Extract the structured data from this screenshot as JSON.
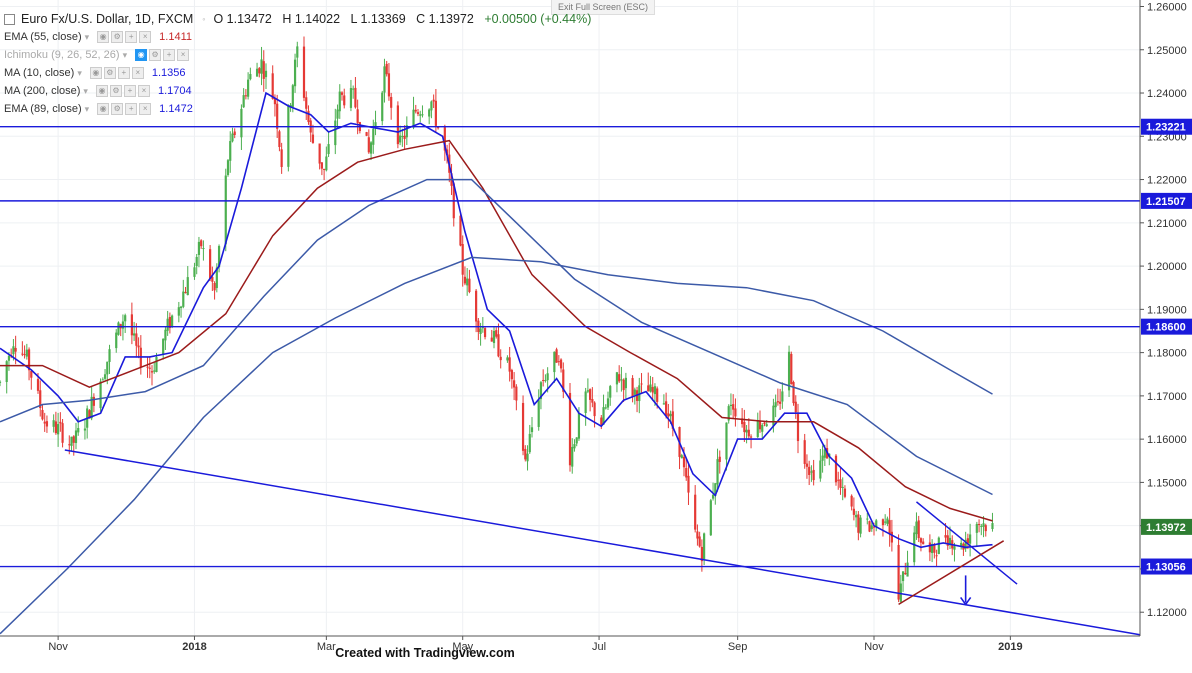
{
  "header": {
    "symbol": "Euro Fx/U.S. Dollar, 1D, FXCM",
    "open": "O 1.13472",
    "high": "H 1.14022",
    "low": "L 1.13369",
    "close": "C 1.13972",
    "change": "+0.00500 (+0.44%)",
    "exit_fullscreen": "Exit Full Screen (ESC)"
  },
  "indicators": [
    {
      "label": "EMA (55, close)",
      "value": "1.1411",
      "color": "#c62828",
      "dim": false
    },
    {
      "label": "Ichimoku (9, 26, 52, 26)",
      "value": "",
      "color": "#aaaaaa",
      "dim": true
    },
    {
      "label": "MA (10, close)",
      "value": "1.1356",
      "color": "#1a1adb",
      "dim": false
    },
    {
      "label": "MA (200, close)",
      "value": "1.1704",
      "color": "#1a1adb",
      "dim": false
    },
    {
      "label": "EMA (89, close)",
      "value": "1.1472",
      "color": "#1a1adb",
      "dim": false
    }
  ],
  "footer": "Created with Tradingview.com",
  "colors": {
    "up_candle": "#4caf50",
    "down_candle": "#e53935",
    "ma10": "#1a1adb",
    "ema55": "#9b1b1b",
    "ema89": "#3c5aa8",
    "ma200": "#3c5aa8",
    "hline": "#1a1adb",
    "price_badge_up": "#2e7d32",
    "axis_text": "#333333"
  },
  "chart_data": {
    "type": "candlestick",
    "title": "Euro Fx/U.S. Dollar, 1D, FXCM",
    "ylim": [
      1.1145,
      1.2615
    ],
    "y_ticks": [
      "1.12000",
      "1.13000",
      "1.14000",
      "1.15000",
      "1.16000",
      "1.17000",
      "1.18000",
      "1.19000",
      "1.20000",
      "1.21000",
      "1.22000",
      "1.23000",
      "1.24000",
      "1.25000",
      "1.26000"
    ],
    "x_range": [
      "2017-10-06",
      "2019-02-28"
    ],
    "x_ticks": [
      {
        "label": "Nov",
        "date": "2017-11-01"
      },
      {
        "label": "2018",
        "date": "2018-01-01"
      },
      {
        "label": "Mar",
        "date": "2018-03-01"
      },
      {
        "label": "May",
        "date": "2018-05-01"
      },
      {
        "label": "Jul",
        "date": "2018-07-01"
      },
      {
        "label": "Sep",
        "date": "2018-09-01"
      },
      {
        "label": "Nov",
        "date": "2018-11-01"
      },
      {
        "label": "2019",
        "date": "2019-01-01"
      }
    ],
    "price_badges": [
      {
        "value": "1.23221",
        "color": "#1a1adb"
      },
      {
        "value": "1.21507",
        "color": "#1a1adb"
      },
      {
        "value": "1.18600",
        "color": "#1a1adb"
      },
      {
        "value": "1.13972",
        "color": "#2e7d32"
      },
      {
        "value": "1.13056",
        "color": "#1a1adb"
      }
    ],
    "horizontal_lines": [
      1.23221,
      1.21507,
      1.186,
      1.13056
    ],
    "trendlines": [
      {
        "name": "long-support",
        "color": "#1a1adb",
        "points": [
          [
            "2017-11-04",
            1.1575
          ],
          [
            "2019-02-28",
            1.1148
          ]
        ]
      },
      {
        "name": "short-resistance",
        "color": "#1a1adb",
        "points": [
          [
            "2018-11-20",
            1.1455
          ],
          [
            "2019-01-04",
            1.1265
          ]
        ]
      },
      {
        "name": "rising-support",
        "color": "#9b1b1b",
        "points": [
          [
            "2018-11-12",
            1.1218
          ],
          [
            "2018-12-29",
            1.1365
          ]
        ]
      }
    ],
    "arrow": {
      "date": "2018-12-12",
      "from": 1.1285,
      "to": 1.1218,
      "color": "#1a1adb"
    },
    "ohlc_close_path": [
      [
        "2017-10-06",
        1.173
      ],
      [
        "2017-10-12",
        1.183
      ],
      [
        "2017-10-18",
        1.1785
      ],
      [
        "2017-10-26",
        1.164
      ],
      [
        "2017-11-02",
        1.162
      ],
      [
        "2017-11-07",
        1.1585
      ],
      [
        "2017-11-13",
        1.164
      ],
      [
        "2017-11-20",
        1.174
      ],
      [
        "2017-11-27",
        1.184
      ],
      [
        "2017-12-01",
        1.189
      ],
      [
        "2017-12-07",
        1.179
      ],
      [
        "2017-12-13",
        1.176
      ],
      [
        "2017-12-20",
        1.186
      ],
      [
        "2017-12-28",
        1.195
      ],
      [
        "2018-01-04",
        1.205
      ],
      [
        "2018-01-10",
        1.194
      ],
      [
        "2018-01-16",
        1.225
      ],
      [
        "2018-01-25",
        1.243
      ],
      [
        "2018-01-31",
        1.247
      ],
      [
        "2018-02-06",
        1.238
      ],
      [
        "2018-02-09",
        1.224
      ],
      [
        "2018-02-16",
        1.25
      ],
      [
        "2018-02-22",
        1.23
      ],
      [
        "2018-02-28",
        1.222
      ],
      [
        "2018-03-07",
        1.239
      ],
      [
        "2018-03-13",
        1.239
      ],
      [
        "2018-03-20",
        1.226
      ],
      [
        "2018-03-27",
        1.245
      ],
      [
        "2018-04-03",
        1.228
      ],
      [
        "2018-04-10",
        1.236
      ],
      [
        "2018-04-17",
        1.238
      ],
      [
        "2018-04-24",
        1.224
      ],
      [
        "2018-05-01",
        1.199
      ],
      [
        "2018-05-08",
        1.187
      ],
      [
        "2018-05-15",
        1.183
      ],
      [
        "2018-05-22",
        1.176
      ],
      [
        "2018-05-29",
        1.155
      ],
      [
        "2018-06-05",
        1.173
      ],
      [
        "2018-06-13",
        1.18
      ],
      [
        "2018-06-18",
        1.156
      ],
      [
        "2018-06-25",
        1.17
      ],
      [
        "2018-07-02",
        1.164
      ],
      [
        "2018-07-09",
        1.175
      ],
      [
        "2018-07-16",
        1.171
      ],
      [
        "2018-07-23",
        1.171
      ],
      [
        "2018-07-30",
        1.169
      ],
      [
        "2018-08-06",
        1.158
      ],
      [
        "2018-08-13",
        1.138
      ],
      [
        "2018-08-16",
        1.134
      ],
      [
        "2018-08-23",
        1.154
      ],
      [
        "2018-08-29",
        1.169
      ],
      [
        "2018-09-05",
        1.162
      ],
      [
        "2018-09-12",
        1.164
      ],
      [
        "2018-09-19",
        1.167
      ],
      [
        "2018-09-24",
        1.179
      ],
      [
        "2018-09-28",
        1.161
      ],
      [
        "2018-10-04",
        1.152
      ],
      [
        "2018-10-11",
        1.157
      ],
      [
        "2018-10-18",
        1.147
      ],
      [
        "2018-10-25",
        1.14
      ],
      [
        "2018-11-01",
        1.14
      ],
      [
        "2018-11-07",
        1.143
      ],
      [
        "2018-11-12",
        1.123
      ],
      [
        "2018-11-19",
        1.14
      ],
      [
        "2018-11-26",
        1.133
      ],
      [
        "2018-12-03",
        1.138
      ],
      [
        "2018-12-10",
        1.135
      ],
      [
        "2018-12-17",
        1.141
      ],
      [
        "2018-12-24",
        1.1397
      ]
    ],
    "series": [
      {
        "name": "MA (10, close)",
        "color": "#1a1adb",
        "points": [
          [
            "2017-10-06",
            1.181
          ],
          [
            "2017-10-20",
            1.176
          ],
          [
            "2017-11-01",
            1.17
          ],
          [
            "2017-11-10",
            1.164
          ],
          [
            "2017-11-20",
            1.166
          ],
          [
            "2017-12-01",
            1.179
          ],
          [
            "2017-12-12",
            1.179
          ],
          [
            "2017-12-22",
            1.18
          ],
          [
            "2018-01-05",
            1.195
          ],
          [
            "2018-01-12",
            1.2
          ],
          [
            "2018-01-22",
            1.218
          ],
          [
            "2018-02-02",
            1.24
          ],
          [
            "2018-02-12",
            1.237
          ],
          [
            "2018-02-22",
            1.235
          ],
          [
            "2018-03-02",
            1.231
          ],
          [
            "2018-03-12",
            1.233
          ],
          [
            "2018-03-22",
            1.232
          ],
          [
            "2018-04-02",
            1.231
          ],
          [
            "2018-04-12",
            1.233
          ],
          [
            "2018-04-22",
            1.23
          ],
          [
            "2018-05-02",
            1.208
          ],
          [
            "2018-05-12",
            1.19
          ],
          [
            "2018-05-22",
            1.185
          ],
          [
            "2018-06-02",
            1.168
          ],
          [
            "2018-06-12",
            1.174
          ],
          [
            "2018-06-22",
            1.166
          ],
          [
            "2018-07-02",
            1.163
          ],
          [
            "2018-07-12",
            1.169
          ],
          [
            "2018-07-22",
            1.171
          ],
          [
            "2018-08-02",
            1.164
          ],
          [
            "2018-08-12",
            1.152
          ],
          [
            "2018-08-22",
            1.147
          ],
          [
            "2018-09-01",
            1.16
          ],
          [
            "2018-09-12",
            1.16
          ],
          [
            "2018-09-22",
            1.166
          ],
          [
            "2018-10-02",
            1.166
          ],
          [
            "2018-10-12",
            1.156
          ],
          [
            "2018-10-22",
            1.151
          ],
          [
            "2018-11-01",
            1.14
          ],
          [
            "2018-11-12",
            1.137
          ],
          [
            "2018-11-22",
            1.135
          ],
          [
            "2018-12-02",
            1.136
          ],
          [
            "2018-12-12",
            1.135
          ],
          [
            "2018-12-24",
            1.1356
          ]
        ]
      },
      {
        "name": "EMA (55, close)",
        "color": "#9b1b1b",
        "points": [
          [
            "2017-10-06",
            1.177
          ],
          [
            "2017-10-25",
            1.177
          ],
          [
            "2017-11-15",
            1.172
          ],
          [
            "2017-12-05",
            1.176
          ],
          [
            "2017-12-25",
            1.18
          ],
          [
            "2018-01-15",
            1.189
          ],
          [
            "2018-02-05",
            1.207
          ],
          [
            "2018-02-25",
            1.218
          ],
          [
            "2018-03-15",
            1.224
          ],
          [
            "2018-04-05",
            1.227
          ],
          [
            "2018-04-25",
            1.229
          ],
          [
            "2018-05-10",
            1.218
          ],
          [
            "2018-06-01",
            1.198
          ],
          [
            "2018-06-25",
            1.186
          ],
          [
            "2018-07-15",
            1.18
          ],
          [
            "2018-08-05",
            1.174
          ],
          [
            "2018-08-25",
            1.165
          ],
          [
            "2018-09-15",
            1.164
          ],
          [
            "2018-10-05",
            1.164
          ],
          [
            "2018-10-25",
            1.158
          ],
          [
            "2018-11-15",
            1.149
          ],
          [
            "2018-12-05",
            1.144
          ],
          [
            "2018-12-24",
            1.1411
          ]
        ]
      },
      {
        "name": "EMA (89, close)",
        "color": "#3c5aa8",
        "points": [
          [
            "2017-10-06",
            1.164
          ],
          [
            "2017-10-25",
            1.168
          ],
          [
            "2017-11-15",
            1.169
          ],
          [
            "2017-12-10",
            1.171
          ],
          [
            "2018-01-05",
            1.177
          ],
          [
            "2018-02-01",
            1.193
          ],
          [
            "2018-02-25",
            1.206
          ],
          [
            "2018-03-20",
            1.214
          ],
          [
            "2018-04-15",
            1.22
          ],
          [
            "2018-05-05",
            1.22
          ],
          [
            "2018-05-25",
            1.21
          ],
          [
            "2018-06-20",
            1.197
          ],
          [
            "2018-07-20",
            1.187
          ],
          [
            "2018-08-20",
            1.18
          ],
          [
            "2018-09-20",
            1.173
          ],
          [
            "2018-10-20",
            1.168
          ],
          [
            "2018-11-20",
            1.156
          ],
          [
            "2018-12-24",
            1.1472
          ]
        ]
      },
      {
        "name": "MA (200, close)",
        "color": "#3c5aa8",
        "points": [
          [
            "2017-10-06",
            1.115
          ],
          [
            "2017-11-05",
            1.13
          ],
          [
            "2017-12-05",
            1.146
          ],
          [
            "2018-01-05",
            1.165
          ],
          [
            "2018-02-05",
            1.18
          ],
          [
            "2018-03-05",
            1.188
          ],
          [
            "2018-04-05",
            1.196
          ],
          [
            "2018-05-05",
            1.202
          ],
          [
            "2018-06-05",
            1.201
          ],
          [
            "2018-07-05",
            1.198
          ],
          [
            "2018-08-05",
            1.196
          ],
          [
            "2018-09-05",
            1.195
          ],
          [
            "2018-10-05",
            1.192
          ],
          [
            "2018-11-05",
            1.185
          ],
          [
            "2018-12-05",
            1.176
          ],
          [
            "2018-12-24",
            1.1704
          ]
        ]
      }
    ]
  }
}
